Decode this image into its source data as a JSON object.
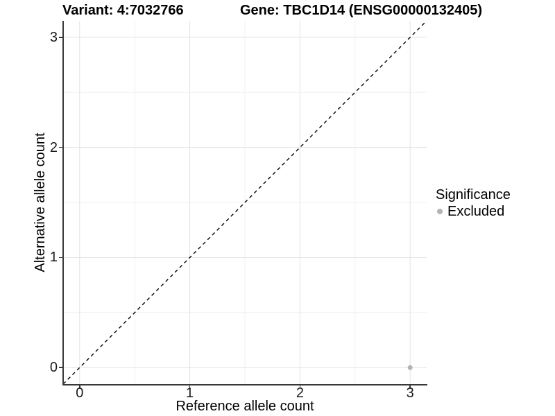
{
  "titles": {
    "variant": "Variant: 4:7032766",
    "gene": "Gene: TBC1D14 (ENSG00000132405)"
  },
  "axes": {
    "x": {
      "label": "Reference allele count",
      "tick_labels": [
        "0",
        "1",
        "2",
        "3"
      ]
    },
    "y": {
      "label": "Alternative allele count",
      "tick_labels": [
        "0",
        "1",
        "2",
        "3"
      ]
    }
  },
  "legend": {
    "title": "Significance",
    "items": [
      {
        "label": "Excluded",
        "color": "#b4b4b4"
      }
    ]
  },
  "colors": {
    "background": "#ffffff",
    "grid_major": "#e2e2e2",
    "grid_minor": "#f0f0f0",
    "axis": "#383838",
    "tick_text": "#1a1a1a",
    "title_text": "#000000",
    "point": "#b4b4b4",
    "reference_line": "#000000"
  },
  "chart_data": {
    "type": "scatter",
    "title": "Variant: 4:7032766   Gene: TBC1D14 (ENSG00000132405)",
    "xlabel": "Reference allele count",
    "ylabel": "Alternative allele count",
    "xlim": [
      -0.15,
      3.15
    ],
    "ylim": [
      -0.15,
      3.15
    ],
    "x_ticks": [
      0,
      1,
      2,
      3
    ],
    "y_ticks": [
      0,
      1,
      2,
      3
    ],
    "x_minor": [
      0.5,
      1.5,
      2.5
    ],
    "y_minor": [
      0.5,
      1.5,
      2.5
    ],
    "grid": "major+minor",
    "legend_position": "right",
    "legend_title": "Significance",
    "series": [
      {
        "name": "Excluded",
        "color": "#b4b4b4",
        "point_radius": 3.5,
        "points": [
          {
            "x": 3,
            "y": 0
          }
        ]
      }
    ],
    "reference_line": {
      "type": "identity y=x",
      "style": "dashed",
      "color": "#000000"
    }
  }
}
